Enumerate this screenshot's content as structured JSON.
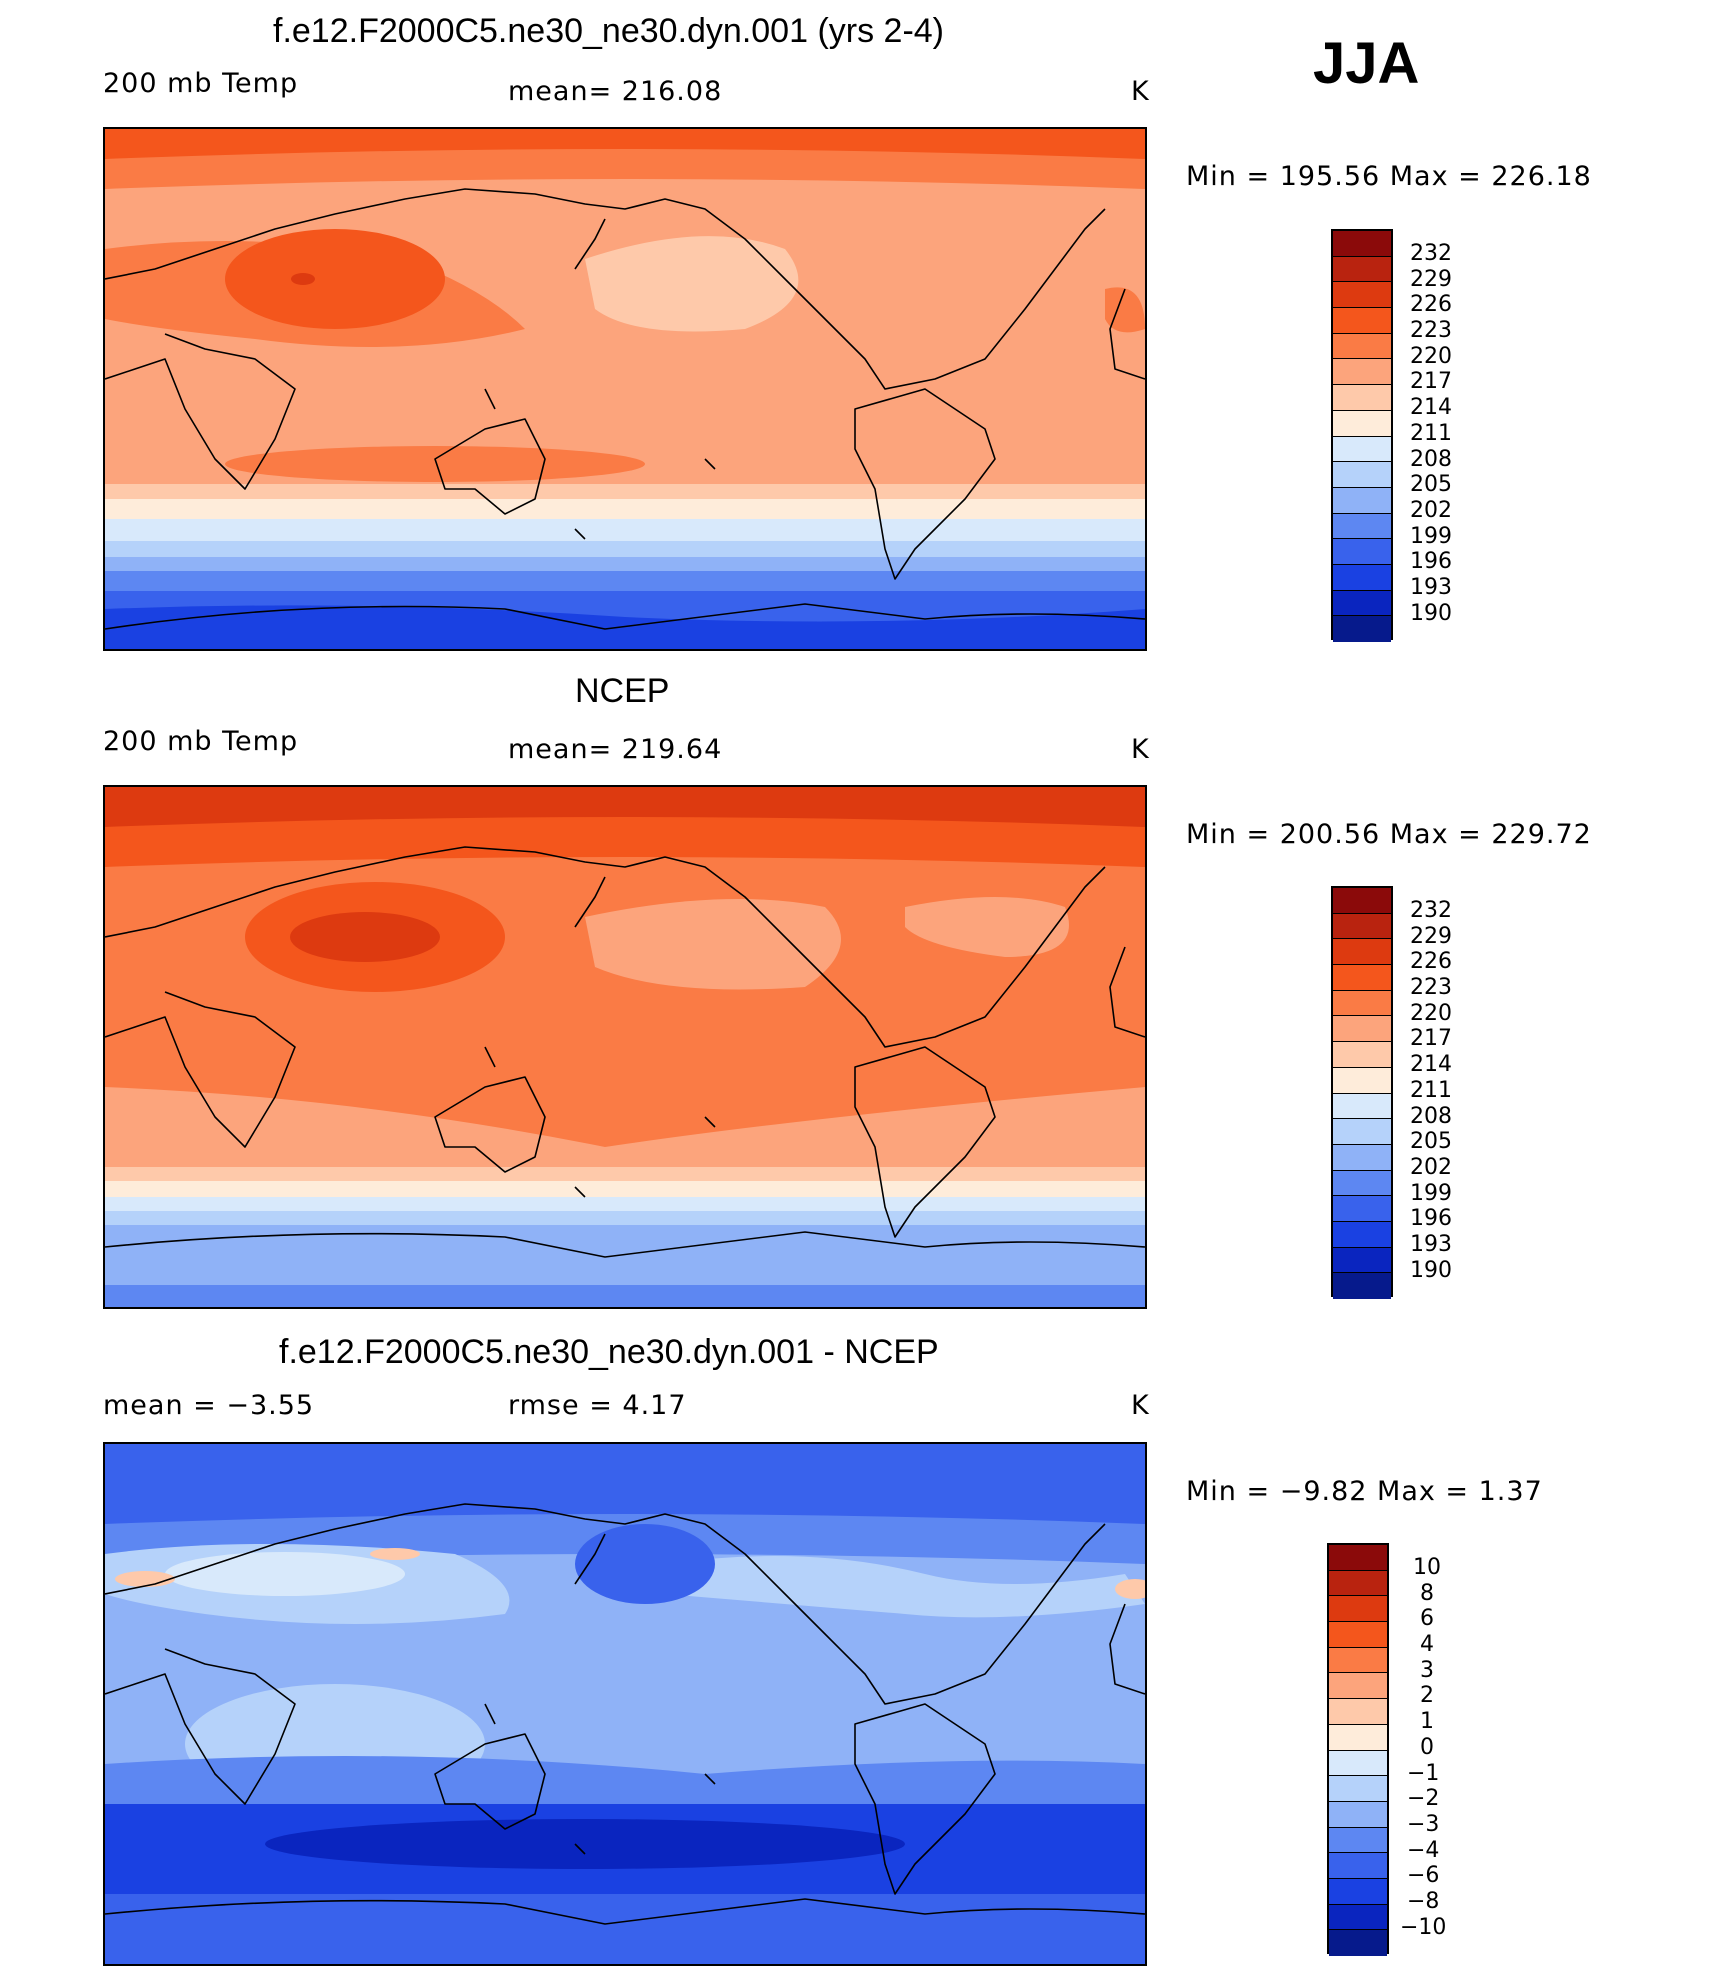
{
  "season": "JJA",
  "panels": [
    {
      "id": "model",
      "title": "f.e12.F2000C5.ne30_ne30.dyn.001 (yrs 2-4)",
      "left_label": "200 mb Temp",
      "center_label": "mean=  216.08",
      "units": "K",
      "minmax": "Min  =  195.56  Max  =  226.18",
      "colorbar_labels": [
        "232",
        "229",
        "226",
        "223",
        "220",
        "217",
        "214",
        "211",
        "208",
        "205",
        "202",
        "199",
        "196",
        "193",
        "190"
      ]
    },
    {
      "id": "obs",
      "title": "NCEP",
      "left_label": "200 mb Temp",
      "center_label": "mean=  219.64",
      "units": "K",
      "minmax": "Min  =  200.56  Max  =  229.72",
      "colorbar_labels": [
        "232",
        "229",
        "226",
        "223",
        "220",
        "217",
        "214",
        "211",
        "208",
        "205",
        "202",
        "199",
        "196",
        "193",
        "190"
      ]
    },
    {
      "id": "diff",
      "title": "f.e12.F2000C5.ne30_ne30.dyn.001 - NCEP",
      "left_label": "mean  =    −3.55",
      "center_label": "rmse  =     4.17",
      "units": "K",
      "minmax": "Min  =    −9.82  Max  =     1.37",
      "colorbar_labels": [
        "10",
        "8",
        "6",
        "4",
        "3",
        "2",
        "1",
        "0",
        "−1",
        "−2",
        "−3",
        "−4",
        "−6",
        "−8",
        "−10"
      ]
    }
  ],
  "colors": {
    "scale": [
      "#8b0a0a",
      "#b9230f",
      "#dd3a10",
      "#f4561c",
      "#fa7b45",
      "#fca47c",
      "#fec9aa",
      "#feecda",
      "#d8e9fb",
      "#b5d2fa",
      "#8fb2f7",
      "#5d87f2",
      "#3962ec",
      "#1a41e2",
      "#0a25bf",
      "#061a8c"
    ],
    "coast": "#000000"
  }
}
